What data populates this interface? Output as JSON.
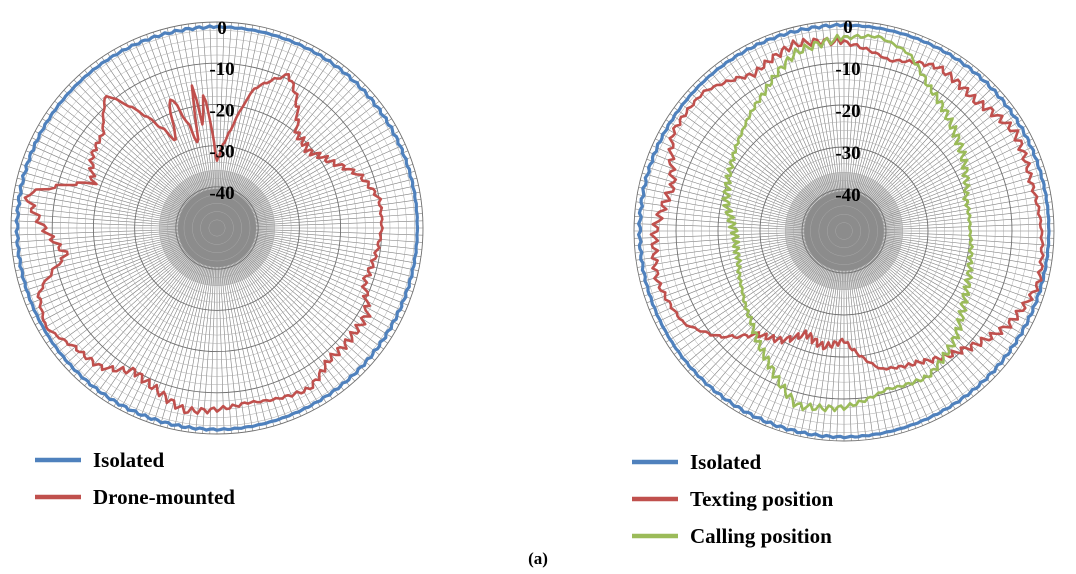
{
  "caption": "(a)",
  "chart_data": [
    {
      "type": "polar-line",
      "r_ticks": [
        "0",
        "-10",
        "-20",
        "-30",
        "-40"
      ],
      "r_range": [
        -50,
        0
      ],
      "angular_grid_step_deg": 2,
      "grid": true,
      "legend_position": "bottom-left",
      "colors": {
        "Isolated": "#4F81BD",
        "Drone-mounted": "#C0504D"
      },
      "series": [
        {
          "name": "Isolated",
          "angles_deg": [
            0,
            30,
            60,
            90,
            120,
            150,
            180,
            210,
            240,
            270,
            300,
            330
          ],
          "values": [
            -1.2,
            -1.3,
            -1.5,
            -1.8,
            -2.0,
            -1.5,
            -0.8,
            -1.0,
            -1.8,
            -2.2,
            -1.8,
            -1.4
          ]
        },
        {
          "name": "Drone-mounted",
          "angles_deg": [
            0,
            8,
            15,
            20,
            25,
            30,
            40,
            50,
            60,
            70,
            80,
            90,
            100,
            110,
            120,
            130,
            140,
            150,
            160,
            170,
            180,
            190,
            200,
            210,
            220,
            230,
            240,
            250,
            260,
            270,
            280,
            290,
            300,
            310,
            320,
            330,
            335,
            340,
            343,
            346,
            348,
            350,
            352,
            354,
            356,
            358
          ],
          "values": [
            -34,
            -26,
            -15,
            -12,
            -9,
            -12,
            -20,
            -21,
            -18,
            -13,
            -10,
            -10,
            -11,
            -12,
            -8,
            -8,
            -8,
            -5,
            -6,
            -7,
            -6,
            -5,
            -8,
            -10,
            -6,
            -5,
            -2,
            -4,
            -13,
            -8,
            -3,
            -18,
            -15,
            -14,
            -8,
            -21,
            -27,
            -16,
            -21,
            -27,
            -29,
            -14,
            -25,
            -18,
            -22,
            -30
          ]
        }
      ]
    },
    {
      "type": "polar-line",
      "r_ticks": [
        "0",
        "-10",
        "-20",
        "-30",
        "-40"
      ],
      "r_range": [
        -50,
        0
      ],
      "angular_grid_step_deg": 2,
      "grid": true,
      "legend_position": "bottom-left",
      "colors": {
        "Isolated": "#4F81BD",
        "Texting position": "#C0504D",
        "Calling position": "#9BBB59"
      },
      "series": [
        {
          "name": "Isolated",
          "angles_deg": [
            0,
            30,
            60,
            90,
            120,
            150,
            180,
            210,
            240,
            270,
            300,
            330
          ],
          "values": [
            -1.0,
            -1.2,
            -1.5,
            -1.8,
            -2.0,
            -1.5,
            -0.8,
            -1.0,
            -1.8,
            -2.2,
            -1.8,
            -1.4
          ]
        },
        {
          "name": "Texting position",
          "angles_deg": [
            0,
            15,
            30,
            45,
            60,
            75,
            90,
            105,
            120,
            135,
            150,
            165,
            180,
            190,
            200,
            210,
            220,
            230,
            240,
            255,
            270,
            285,
            300,
            315,
            330,
            345
          ],
          "values": [
            -5,
            -8,
            -5,
            -6,
            -3,
            -4,
            -3,
            -2,
            -5,
            -10,
            -14,
            -16,
            -24,
            -22,
            -24,
            -20,
            -18,
            -11,
            -6,
            -4,
            -5,
            -8,
            -3,
            -3,
            -7,
            -4
          ]
        },
        {
          "name": "Calling position",
          "angles_deg": [
            0,
            10,
            20,
            30,
            45,
            60,
            75,
            90,
            105,
            120,
            135,
            150,
            165,
            180,
            195,
            210,
            225,
            240,
            255,
            270,
            285,
            300,
            315,
            330,
            345
          ],
          "values": [
            -4,
            -3,
            -5,
            -10,
            -14,
            -17,
            -20,
            -20,
            -19,
            -17,
            -13,
            -10,
            -11,
            -8,
            -7,
            -14,
            -19,
            -22,
            -24,
            -24,
            -21,
            -19,
            -16,
            -12,
            -6
          ]
        }
      ]
    }
  ]
}
